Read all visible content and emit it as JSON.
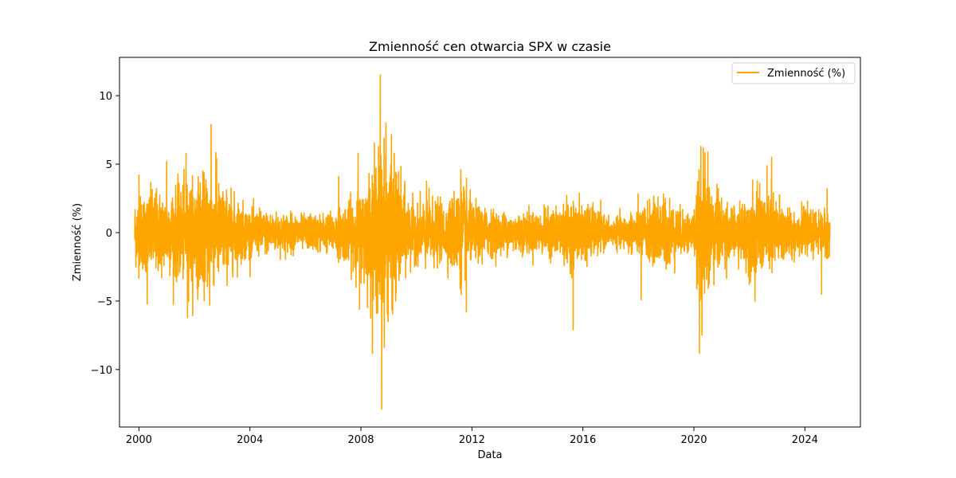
{
  "chart_data": {
    "type": "line",
    "title": "Zmienność cen otwarcia SPX w czasie",
    "xlabel": "Data",
    "ylabel": "Zmienność (%)",
    "xlim": [
      1999.3,
      2026.0
    ],
    "ylim": [
      -14.2,
      12.8
    ],
    "x_ticks": [
      {
        "value": 2000,
        "label": "2000"
      },
      {
        "value": 2004,
        "label": "2004"
      },
      {
        "value": 2008,
        "label": "2008"
      },
      {
        "value": 2012,
        "label": "2012"
      },
      {
        "value": 2016,
        "label": "2016"
      },
      {
        "value": 2020,
        "label": "2020"
      },
      {
        "value": 2024,
        "label": "2024"
      }
    ],
    "y_ticks": [
      {
        "value": 10,
        "label": "10"
      },
      {
        "value": 5,
        "label": "5"
      },
      {
        "value": 0,
        "label": "0"
      },
      {
        "value": -5,
        "label": "−5"
      },
      {
        "value": -10,
        "label": "−10"
      }
    ],
    "grid": false,
    "legend": {
      "position": "top-right",
      "entries": [
        "Zmienność (%)"
      ]
    },
    "series": [
      {
        "name": "Zmienność (%)",
        "color": "#FFA500",
        "x_start": 1999.85,
        "x_end": 2024.9,
        "volatility_profile": [
          [
            1999.85,
            1.2
          ],
          [
            2000.5,
            1.5
          ],
          [
            2001.0,
            1.4
          ],
          [
            2001.7,
            1.7
          ],
          [
            2002.5,
            2.0
          ],
          [
            2003.0,
            1.6
          ],
          [
            2003.6,
            1.1
          ],
          [
            2004.0,
            0.8
          ],
          [
            2006.0,
            0.6
          ],
          [
            2007.0,
            0.7
          ],
          [
            2007.6,
            1.1
          ],
          [
            2008.0,
            1.4
          ],
          [
            2008.7,
            3.0
          ],
          [
            2009.1,
            2.6
          ],
          [
            2009.6,
            1.4
          ],
          [
            2010.0,
            0.9
          ],
          [
            2010.4,
            1.3
          ],
          [
            2011.0,
            0.9
          ],
          [
            2011.6,
            1.8
          ],
          [
            2012.0,
            1.0
          ],
          [
            2013.0,
            0.7
          ],
          [
            2014.5,
            0.7
          ],
          [
            2015.6,
            1.1
          ],
          [
            2016.2,
            1.0
          ],
          [
            2017.0,
            0.4
          ],
          [
            2018.0,
            0.8
          ],
          [
            2018.9,
            1.3
          ],
          [
            2019.5,
            0.8
          ],
          [
            2020.0,
            0.7
          ],
          [
            2020.3,
            2.6
          ],
          [
            2020.8,
            1.4
          ],
          [
            2021.5,
            0.8
          ],
          [
            2022.0,
            1.4
          ],
          [
            2022.8,
            1.5
          ],
          [
            2023.5,
            0.8
          ],
          [
            2024.3,
            0.7
          ],
          [
            2024.9,
            0.8
          ]
        ],
        "extreme_points": [
          {
            "x": 2000.0,
            "y": 4.2
          },
          {
            "x": 2000.3,
            "y": -5.2
          },
          {
            "x": 2001.0,
            "y": 5.2
          },
          {
            "x": 2001.7,
            "y": 5.8
          },
          {
            "x": 2001.75,
            "y": -6.2
          },
          {
            "x": 2002.6,
            "y": 7.9
          },
          {
            "x": 2002.55,
            "y": -5.3
          },
          {
            "x": 2002.8,
            "y": 5.4
          },
          {
            "x": 2007.2,
            "y": 4.1
          },
          {
            "x": 2007.9,
            "y": 5.8
          },
          {
            "x": 2007.95,
            "y": -5.6
          },
          {
            "x": 2008.7,
            "y": 11.5
          },
          {
            "x": 2008.75,
            "y": -12.9
          },
          {
            "x": 2008.9,
            "y": 8.0
          },
          {
            "x": 2009.2,
            "y": 5.8
          },
          {
            "x": 2009.25,
            "y": -5.0
          },
          {
            "x": 2011.6,
            "y": 4.6
          },
          {
            "x": 2011.8,
            "y": -5.8
          },
          {
            "x": 2015.65,
            "y": -7.1
          },
          {
            "x": 2018.1,
            "y": -4.9
          },
          {
            "x": 2020.2,
            "y": -8.8
          },
          {
            "x": 2020.25,
            "y": 6.3
          },
          {
            "x": 2020.5,
            "y": 5.9
          },
          {
            "x": 2022.2,
            "y": -5.0
          },
          {
            "x": 2022.8,
            "y": 5.5
          },
          {
            "x": 2024.6,
            "y": -4.5
          },
          {
            "x": 2024.8,
            "y": 3.2
          }
        ]
      }
    ]
  }
}
